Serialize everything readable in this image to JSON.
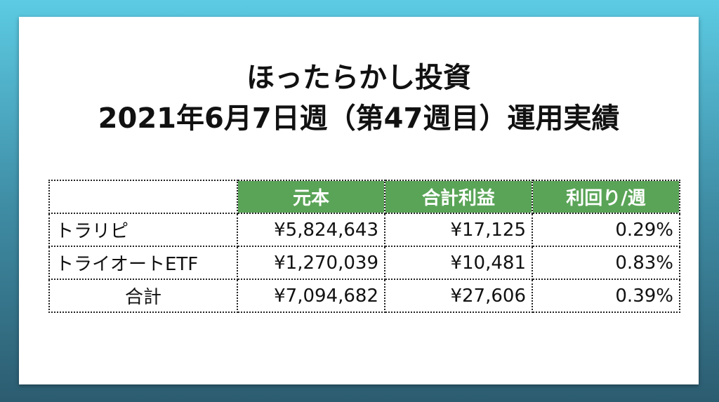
{
  "title": {
    "line1": "ほったらかし投資",
    "line2": "2021年6月7日週（第47週目）運用実績"
  },
  "table": {
    "headers": [
      "",
      "元本",
      "合計利益",
      "利回り/週"
    ],
    "header_color": "#5aa457",
    "rows": [
      {
        "name": "トラリピ",
        "principal": "¥5,824,643",
        "profit": "¥17,125",
        "yield": "0.29%"
      },
      {
        "name": "トライオートETF",
        "principal": "¥1,270,039",
        "profit": "¥10,481",
        "yield": "0.83%"
      },
      {
        "name": "合計",
        "principal": "¥7,094,682",
        "profit": "¥27,606",
        "yield": "0.39%"
      }
    ]
  }
}
